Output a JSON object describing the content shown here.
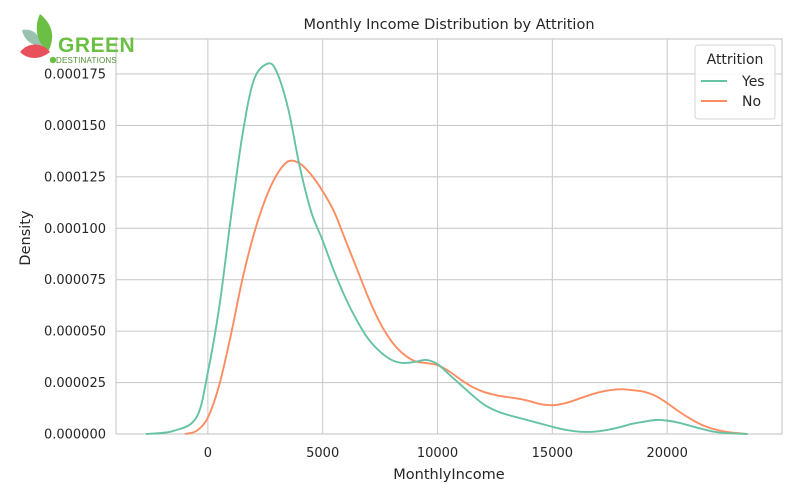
{
  "logo": {
    "word": "GREEN",
    "sub": "DESTINATIONS"
  },
  "chart_data": {
    "type": "line",
    "title": "Monthly Income Distribution by Attrition",
    "xlabel": "MonthlyIncome",
    "ylabel": "Density",
    "xlim": [
      -4000,
      25000
    ],
    "ylim": [
      0,
      0.000192
    ],
    "xticks": [
      0,
      5000,
      10000,
      15000,
      20000
    ],
    "xtick_labels": [
      "0",
      "5000",
      "10000",
      "15000",
      "20000"
    ],
    "yticks": [
      0,
      2.5e-05,
      5e-05,
      7.5e-05,
      0.0001,
      0.000125,
      0.00015,
      0.000175
    ],
    "ytick_labels": [
      "0.000000",
      "0.000025",
      "0.000050",
      "0.000075",
      "0.000100",
      "0.000125",
      "0.000150",
      "0.000175"
    ],
    "grid": true,
    "legend": {
      "title": "Attrition",
      "position": "top-right"
    },
    "series": [
      {
        "name": "Yes",
        "color": "#66c2a5",
        "points": [
          [
            -2700,
            0.0
          ],
          [
            -1500,
            1.5e-06
          ],
          [
            -500,
            8e-06
          ],
          [
            0,
            3e-05
          ],
          [
            500,
            6.2e-05
          ],
          [
            1000,
            0.000105
          ],
          [
            1500,
            0.000145
          ],
          [
            2000,
            0.000172
          ],
          [
            2600,
            0.00018
          ],
          [
            3000,
            0.000176
          ],
          [
            3500,
            0.000158
          ],
          [
            4000,
            0.00013
          ],
          [
            4500,
            0.000108
          ],
          [
            5000,
            9.4e-05
          ],
          [
            5500,
            7.9e-05
          ],
          [
            6000,
            6.6e-05
          ],
          [
            6500,
            5.5e-05
          ],
          [
            7000,
            4.6e-05
          ],
          [
            7500,
            4e-05
          ],
          [
            8000,
            3.6e-05
          ],
          [
            8500,
            3.45e-05
          ],
          [
            9000,
            3.5e-05
          ],
          [
            9500,
            3.6e-05
          ],
          [
            10000,
            3.4e-05
          ],
          [
            10500,
            2.9e-05
          ],
          [
            11000,
            2.4e-05
          ],
          [
            11500,
            1.9e-05
          ],
          [
            12000,
            1.45e-05
          ],
          [
            12500,
            1.15e-05
          ],
          [
            13000,
            9.5e-06
          ],
          [
            13500,
            8e-06
          ],
          [
            14000,
            6.5e-06
          ],
          [
            14500,
            5e-06
          ],
          [
            15000,
            3.5e-06
          ],
          [
            15500,
            2.2e-06
          ],
          [
            16000,
            1.3e-06
          ],
          [
            16500,
            1e-06
          ],
          [
            17000,
            1.3e-06
          ],
          [
            17500,
            2.2e-06
          ],
          [
            18000,
            3.5e-06
          ],
          [
            18500,
            5e-06
          ],
          [
            19000,
            6e-06
          ],
          [
            19500,
            6.8e-06
          ],
          [
            20000,
            6.5e-06
          ],
          [
            20500,
            5.5e-06
          ],
          [
            21000,
            4e-06
          ],
          [
            21500,
            2.5e-06
          ],
          [
            22000,
            1.2e-06
          ],
          [
            22500,
            5e-07
          ],
          [
            23500,
            0.0
          ]
        ]
      },
      {
        "name": "No",
        "color": "#fc8d62",
        "points": [
          [
            -1000,
            0.0
          ],
          [
            -500,
            1.5e-06
          ],
          [
            0,
            8e-06
          ],
          [
            500,
            2.4e-05
          ],
          [
            1000,
            4.8e-05
          ],
          [
            1500,
            7.5e-05
          ],
          [
            2000,
            9.7e-05
          ],
          [
            2500,
            0.000114
          ],
          [
            3000,
            0.000126
          ],
          [
            3500,
            0.0001325
          ],
          [
            4000,
            0.0001315
          ],
          [
            4500,
            0.000126
          ],
          [
            5000,
            0.000118
          ],
          [
            5500,
            0.000108
          ],
          [
            6000,
            9.4e-05
          ],
          [
            6500,
            8e-05
          ],
          [
            7000,
            6.6e-05
          ],
          [
            7500,
            5.4e-05
          ],
          [
            8000,
            4.5e-05
          ],
          [
            8500,
            3.9e-05
          ],
          [
            9000,
            3.55e-05
          ],
          [
            9500,
            3.45e-05
          ],
          [
            10000,
            3.35e-05
          ],
          [
            10500,
            3.05e-05
          ],
          [
            11000,
            2.65e-05
          ],
          [
            11500,
            2.3e-05
          ],
          [
            12000,
            2.05e-05
          ],
          [
            12500,
            1.9e-05
          ],
          [
            13000,
            1.8e-05
          ],
          [
            13500,
            1.72e-05
          ],
          [
            14000,
            1.6e-05
          ],
          [
            14500,
            1.45e-05
          ],
          [
            15000,
            1.4e-05
          ],
          [
            15500,
            1.48e-05
          ],
          [
            16000,
            1.65e-05
          ],
          [
            16500,
            1.85e-05
          ],
          [
            17000,
            2.02e-05
          ],
          [
            17500,
            2.13e-05
          ],
          [
            18000,
            2.18e-05
          ],
          [
            18500,
            2.13e-05
          ],
          [
            19000,
            2.05e-05
          ],
          [
            19500,
            1.85e-05
          ],
          [
            20000,
            1.5e-05
          ],
          [
            20500,
            1.1e-05
          ],
          [
            21000,
            7.5e-06
          ],
          [
            21500,
            4.5e-06
          ],
          [
            22000,
            2.5e-06
          ],
          [
            22500,
            1.2e-06
          ],
          [
            23000,
            5e-07
          ],
          [
            23500,
            0.0
          ]
        ]
      }
    ]
  }
}
